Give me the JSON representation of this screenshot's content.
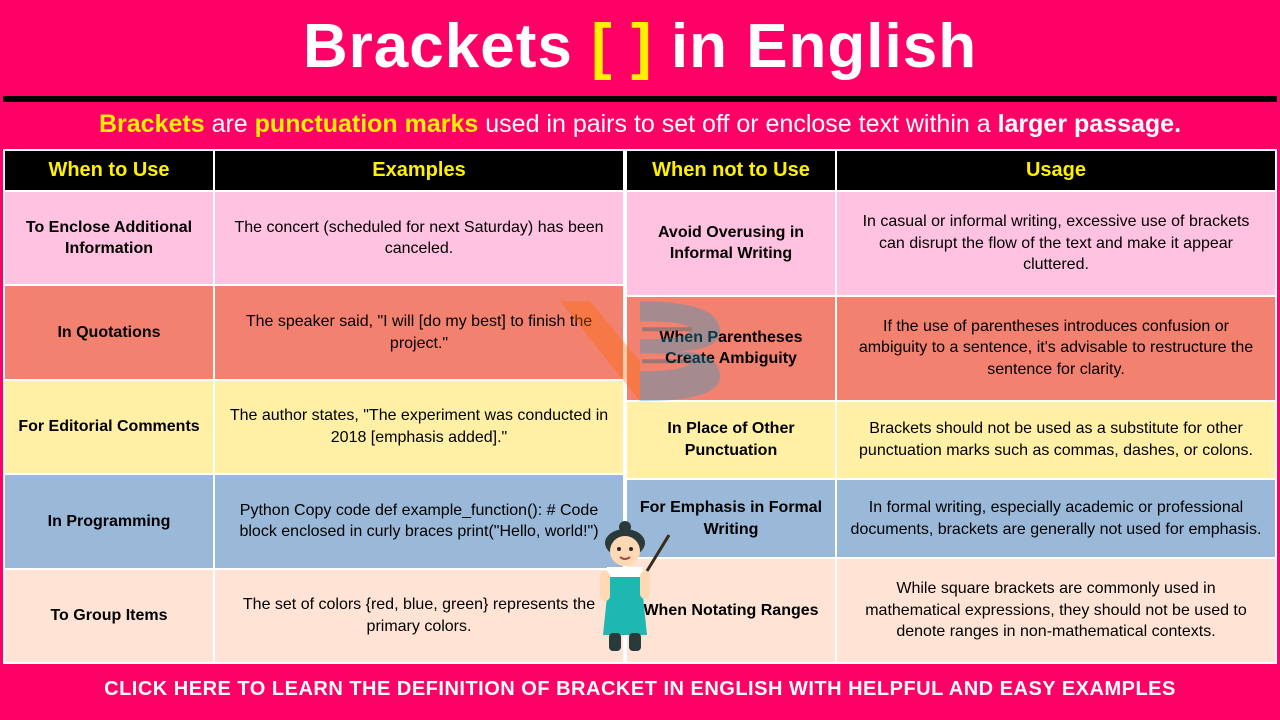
{
  "colors": {
    "brand_pink": "#ff0066",
    "header_black": "#000000",
    "accent_yellow": "#fff000",
    "row_pink": "#ffc2e0",
    "row_salmon": "#f3816f",
    "row_yellow": "#fff0a6",
    "row_blue": "#9ab9d9",
    "row_cream": "#ffe4d6",
    "white": "#ffffff"
  },
  "title": {
    "part1": "Brackets ",
    "bracket_open": "[",
    "bracket_space": " ",
    "bracket_close": "]",
    "part2": " in English",
    "fontsize": 62
  },
  "subtitle": {
    "s1": "Brackets",
    "s2": " are ",
    "s3": "punctuation marks",
    "s4": " used in pairs to set off or enclose text within a ",
    "s5": "larger passage."
  },
  "left_table": {
    "col_a_width": 210,
    "headers": [
      "When to Use",
      "Examples"
    ],
    "rows": [
      {
        "color": "#ffc2e0",
        "a": "To Enclose Additional Information",
        "b": "The concert (scheduled for next Saturday) has been canceled."
      },
      {
        "color": "#f3816f",
        "a": "In Quotations",
        "b": "The speaker said, \"I will [do my best] to finish the project.\""
      },
      {
        "color": "#fff0a6",
        "a": "For Editorial Comments",
        "b": "The author states, \"The experiment was conducted in 2018 [emphasis added].\""
      },
      {
        "color": "#9ab9d9",
        "a": "In Programming",
        "b": "Python Copy code def example_function(): # Code block enclosed in curly braces print(\"Hello, world!\")"
      },
      {
        "color": "#ffe4d6",
        "a": "To Group Items",
        "b": "The set of colors {red, blue, green} represents the primary colors."
      }
    ]
  },
  "right_table": {
    "col_a_width": 210,
    "headers": [
      "When not to Use",
      "Usage"
    ],
    "rows": [
      {
        "color": "#ffc2e0",
        "a": "Avoid Overusing in Informal Writing",
        "b": "In casual or informal writing, excessive use of brackets can disrupt the flow of the text and make it appear cluttered."
      },
      {
        "color": "#f3816f",
        "a": "When Parentheses Create Ambiguity",
        "b": "If the use of parentheses introduces confusion or ambiguity to a sentence, it's advisable to restructure the sentence for clarity."
      },
      {
        "color": "#fff0a6",
        "a": "In Place of Other Punctuation",
        "b": "Brackets should not be used as a substitute for other punctuation marks such as commas, dashes, or colons."
      },
      {
        "color": "#9ab9d9",
        "a": "For Emphasis in Formal Writing",
        "b": "In formal writing, especially academic or professional documents, brackets are generally not used for emphasis."
      },
      {
        "color": "#ffe4d6",
        "a": "When Notating Ranges",
        "b": "While square brackets are commonly used in mathematical expressions, they should not be used to denote ranges in non-mathematical contexts."
      }
    ]
  },
  "footer": "CLICK HERE TO LEARN THE DEFINITION OF BRACKET IN ENGLISH WITH HELPFUL AND EASY EXAMPLES"
}
